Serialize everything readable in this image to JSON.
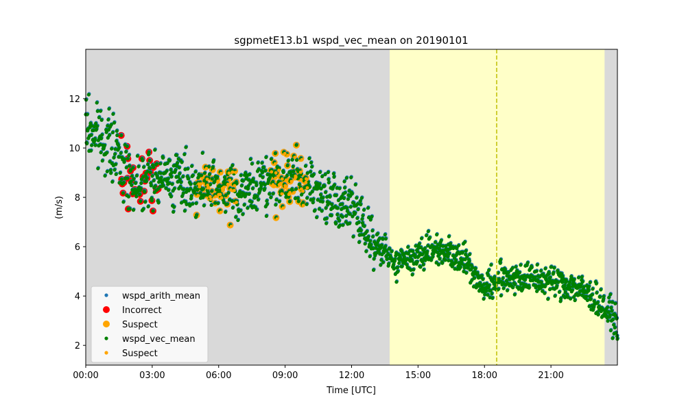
{
  "chart_data": {
    "type": "scatter",
    "title": "sgpmetE13.b1 wspd_vec_mean on 20190101",
    "xlabel": "Time [UTC]",
    "ylabel": "(m/s)",
    "x_unit": "hours",
    "xlim": [
      0,
      24
    ],
    "ylim": [
      1.2,
      14.0
    ],
    "x_ticks": [
      {
        "value": 0,
        "label": "00:00"
      },
      {
        "value": 3,
        "label": "03:00"
      },
      {
        "value": 6,
        "label": "06:00"
      },
      {
        "value": 9,
        "label": "09:00"
      },
      {
        "value": 12,
        "label": "12:00"
      },
      {
        "value": 15,
        "label": "15:00"
      },
      {
        "value": 18,
        "label": "18:00"
      },
      {
        "value": 21,
        "label": "21:00"
      }
    ],
    "y_ticks": [
      {
        "value": 2,
        "label": "2"
      },
      {
        "value": 4,
        "label": "4"
      },
      {
        "value": 6,
        "label": "6"
      },
      {
        "value": 8,
        "label": "8"
      },
      {
        "value": 10,
        "label": "10"
      },
      {
        "value": 12,
        "label": "12"
      }
    ],
    "background_color": "#d9d9d9",
    "shaded_regions": [
      {
        "x_start": 13.72,
        "x_end": 23.42,
        "color": "#ffffc8"
      }
    ],
    "vertical_lines": [
      {
        "x": 18.55,
        "color": "#bfbf00",
        "style": "dashed"
      }
    ],
    "legend_position": "lower-left",
    "legend": [
      {
        "label": "wspd_arith_mean",
        "marker": "small",
        "color": "#1f77b4"
      },
      {
        "label": "Incorrect",
        "marker": "large",
        "color": "#ff0000"
      },
      {
        "label": "Suspect",
        "marker": "large",
        "color": "#ffa500"
      },
      {
        "label": "wspd_vec_mean",
        "marker": "small",
        "color": "#008000"
      },
      {
        "label": "Suspect",
        "marker": "small",
        "color": "#ffa500"
      }
    ],
    "series": [
      {
        "name": "wspd_vec_mean",
        "color": "#008000",
        "points_sampled_hourly": [
          [
            0.0,
            10.6
          ],
          [
            1.0,
            10.0
          ],
          [
            2.0,
            8.6
          ],
          [
            3.0,
            8.8
          ],
          [
            4.0,
            8.8
          ],
          [
            5.0,
            8.4
          ],
          [
            6.0,
            8.3
          ],
          [
            7.0,
            8.2
          ],
          [
            8.0,
            8.5
          ],
          [
            9.0,
            8.7
          ],
          [
            10.0,
            8.6
          ],
          [
            11.0,
            7.9
          ],
          [
            12.0,
            7.6
          ],
          [
            13.0,
            6.2
          ],
          [
            14.0,
            5.3
          ],
          [
            15.0,
            5.7
          ],
          [
            16.0,
            5.9
          ],
          [
            17.0,
            5.6
          ],
          [
            18.0,
            4.3
          ],
          [
            19.0,
            4.8
          ],
          [
            20.0,
            4.7
          ],
          [
            21.0,
            4.6
          ],
          [
            22.0,
            4.4
          ],
          [
            23.0,
            3.9
          ],
          [
            24.0,
            2.9
          ]
        ]
      },
      {
        "name": "Incorrect",
        "color": "#ff0000",
        "x_range": [
          1.6,
          3.4
        ]
      },
      {
        "name": "Suspect",
        "color": "#ffa500",
        "x_ranges": [
          [
            5.0,
            6.8
          ],
          [
            8.3,
            10.0
          ]
        ]
      }
    ]
  }
}
